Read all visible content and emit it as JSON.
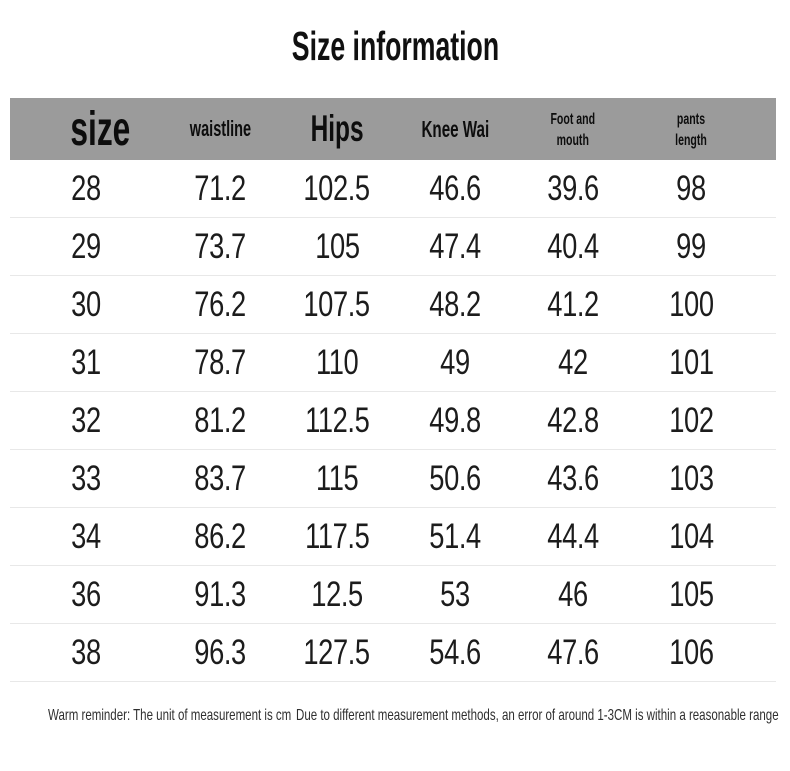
{
  "title": "Size information",
  "table": {
    "columns": [
      {
        "label": "size"
      },
      {
        "label": "waistline"
      },
      {
        "label": "Hips"
      },
      {
        "label": "Knee Wai"
      },
      {
        "line1": "Foot and",
        "line2": "mouth"
      },
      {
        "line1": "pants",
        "line2": "length"
      }
    ],
    "rows": [
      [
        "28",
        "71.2",
        "102.5",
        "46.6",
        "39.6",
        "98"
      ],
      [
        "29",
        "73.7",
        "105",
        "47.4",
        "40.4",
        "99"
      ],
      [
        "30",
        "76.2",
        "107.5",
        "48.2",
        "41.2",
        "100"
      ],
      [
        "31",
        "78.7",
        "110",
        "49",
        "42",
        "101"
      ],
      [
        "32",
        "81.2",
        "112.5",
        "49.8",
        "42.8",
        "102"
      ],
      [
        "33",
        "83.7",
        "115",
        "50.6",
        "43.6",
        "103"
      ],
      [
        "34",
        "86.2",
        "117.5",
        "51.4",
        "44.4",
        "104"
      ],
      [
        "36",
        "91.3",
        "12.5",
        "53",
        "46",
        "105"
      ],
      [
        "38",
        "96.3",
        "127.5",
        "54.6",
        "47.6",
        "106"
      ]
    ]
  },
  "footer": {
    "reminder": "Warm reminder: The unit of measurement is cm",
    "note": "Due to different measurement methods, an error of around 1-3CM is within a reasonable range"
  },
  "colors": {
    "header_bg": "#9b9b9b",
    "divider": "#e8e8e8",
    "text": "#1c1c1c",
    "footer_text": "#2f2f2f",
    "background": "#ffffff"
  },
  "chart_data": {
    "type": "table",
    "title": "Size information",
    "columns": [
      "size",
      "waistline",
      "Hips",
      "Knee Wai",
      "Foot and mouth",
      "pants length"
    ],
    "rows": [
      [
        28,
        71.2,
        102.5,
        46.6,
        39.6,
        98
      ],
      [
        29,
        73.7,
        105,
        47.4,
        40.4,
        99
      ],
      [
        30,
        76.2,
        107.5,
        48.2,
        41.2,
        100
      ],
      [
        31,
        78.7,
        110,
        49,
        42,
        101
      ],
      [
        32,
        81.2,
        112.5,
        49.8,
        42.8,
        102
      ],
      [
        33,
        83.7,
        115,
        50.6,
        43.6,
        103
      ],
      [
        34,
        86.2,
        117.5,
        51.4,
        44.4,
        104
      ],
      [
        36,
        91.3,
        12.5,
        53,
        46,
        105
      ],
      [
        38,
        96.3,
        127.5,
        54.6,
        47.6,
        106
      ]
    ],
    "note": "Unit is cm; error of around 1-3CM is within a reasonable range"
  }
}
